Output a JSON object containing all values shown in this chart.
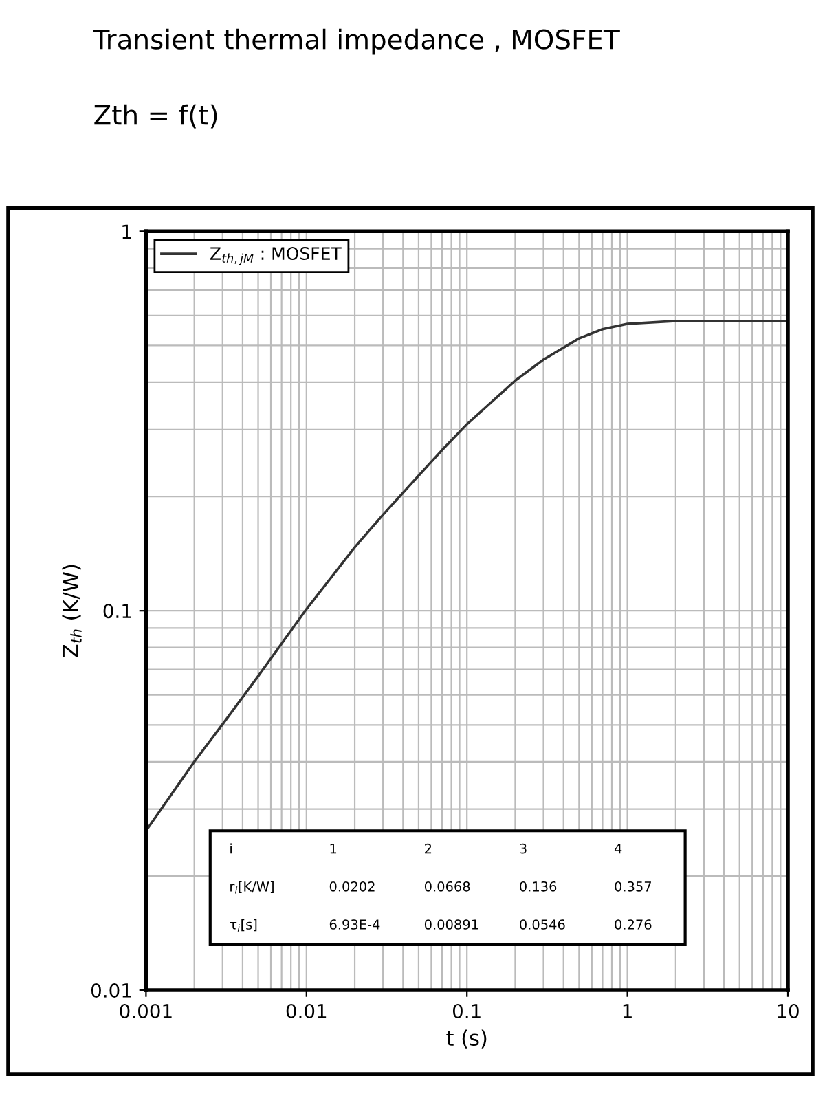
{
  "chart_data": {
    "type": "line",
    "title": "Transient thermal impedance , MOSFET",
    "subtitle": "Zth = f(t)",
    "xlabel": "t (s)",
    "ylabel": "Z$_{th}$ (K/W)",
    "log": "xy",
    "xlim": [
      0.001,
      10
    ],
    "ylim": [
      0.01,
      1
    ],
    "xticks": [
      0.001,
      0.01,
      0.1,
      1,
      10
    ],
    "yticks": [
      0.01,
      0.1,
      1
    ],
    "grid": true,
    "legend": "top left",
    "marker": "none",
    "line_style": "solid",
    "series": [
      {
        "name": "Z$_{th,jM}$ : MOSFET",
        "color": "#333333",
        "x": [
          0.001,
          0.002,
          0.003,
          0.005,
          0.007,
          0.01,
          0.02,
          0.03,
          0.05,
          0.07,
          0.1,
          0.2,
          0.3,
          0.5,
          0.7,
          1,
          2,
          5,
          10
        ],
        "values": [
          0.0263,
          0.04,
          0.0502,
          0.0672,
          0.0819,
          0.101,
          0.147,
          0.179,
          0.227,
          0.265,
          0.31,
          0.404,
          0.459,
          0.522,
          0.552,
          0.57,
          0.58,
          0.58,
          0.58
        ]
      }
    ],
    "annotations": [
      "i",
      "1",
      "2",
      "3",
      "4",
      "r$_{i}$[K/W]",
      "0.0202",
      "0.0668",
      "0.136",
      "0.357",
      "τ$_{i}$[s]",
      "6.93E-4",
      "0.00891",
      "0.0546",
      "0.276"
    ]
  }
}
